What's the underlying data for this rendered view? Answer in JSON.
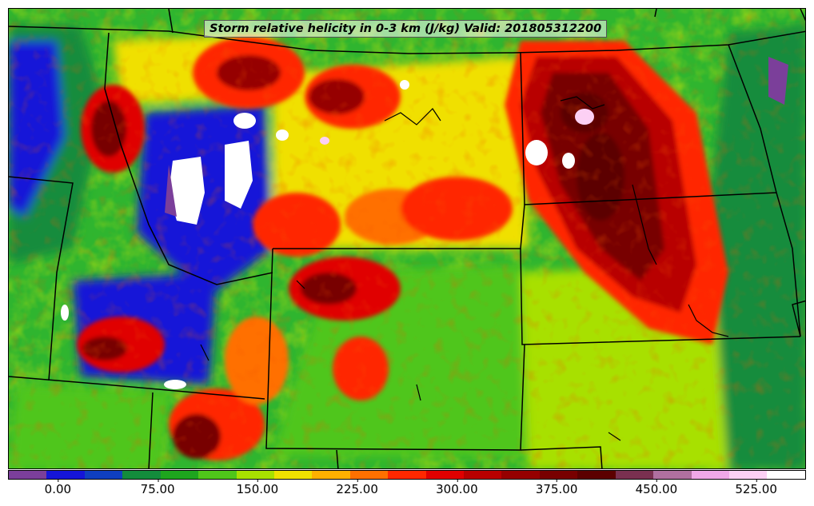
{
  "title": "Storm relative helicity in 0-3 km (J/kg) Valid: 201805312200",
  "colorbar": {
    "colors": [
      "#7b3f9a",
      "#1515d8",
      "#0f3fc0",
      "#138c3c",
      "#1ea51e",
      "#4fc61a",
      "#a8e000",
      "#f0e000",
      "#ffb000",
      "#ff7000",
      "#ff2800",
      "#e00000",
      "#b80000",
      "#960000",
      "#780000",
      "#5c0000",
      "#7a3050",
      "#b070a0",
      "#f0a8e8",
      "#fcd0f4",
      "#ffffff"
    ],
    "ticks": [
      "0.00",
      "75.00",
      "150.00",
      "225.00",
      "300.00",
      "375.00",
      "450.00",
      "525.00"
    ],
    "tick_values": [
      0,
      75,
      150,
      225,
      300,
      375,
      450,
      525
    ],
    "min": -37.5,
    "max": 562.5
  }
}
